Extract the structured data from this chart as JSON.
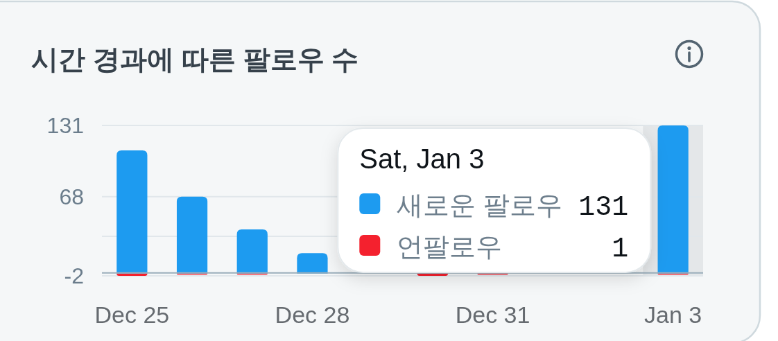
{
  "chart_data": {
    "type": "bar",
    "title": "시간 경과에 따른 팔로우 수",
    "categories": [
      "Dec 25",
      null,
      null,
      "Dec 28",
      null,
      null,
      "Dec 31",
      null,
      null,
      "Jan 3"
    ],
    "series": [
      {
        "name": "새로운 팔로우",
        "color": "#1d9bf0",
        "values": [
          109,
          68,
          39,
          18,
          null,
          null,
          null,
          null,
          null,
          131
        ]
      },
      {
        "name": "언팔로우",
        "color": "#f4212e",
        "values": [
          -2,
          -1,
          -1,
          0,
          0,
          -2,
          -1,
          0,
          0,
          -1
        ]
      }
    ],
    "stacked": true,
    "ylim": [
      -2,
      131
    ],
    "yticks": [
      -2,
      {
        "value": 33,
        "label": null
      },
      68,
      131
    ],
    "grid": "y",
    "bands": [
      {
        "axis": "x",
        "from": "Jan 3",
        "to": "Jan 3",
        "color": "#e4e7e9"
      }
    ],
    "legend": "bottom right",
    "legend_title": "Sat, Jan 3",
    "annotations": [
      "131",
      "1"
    ]
  }
}
